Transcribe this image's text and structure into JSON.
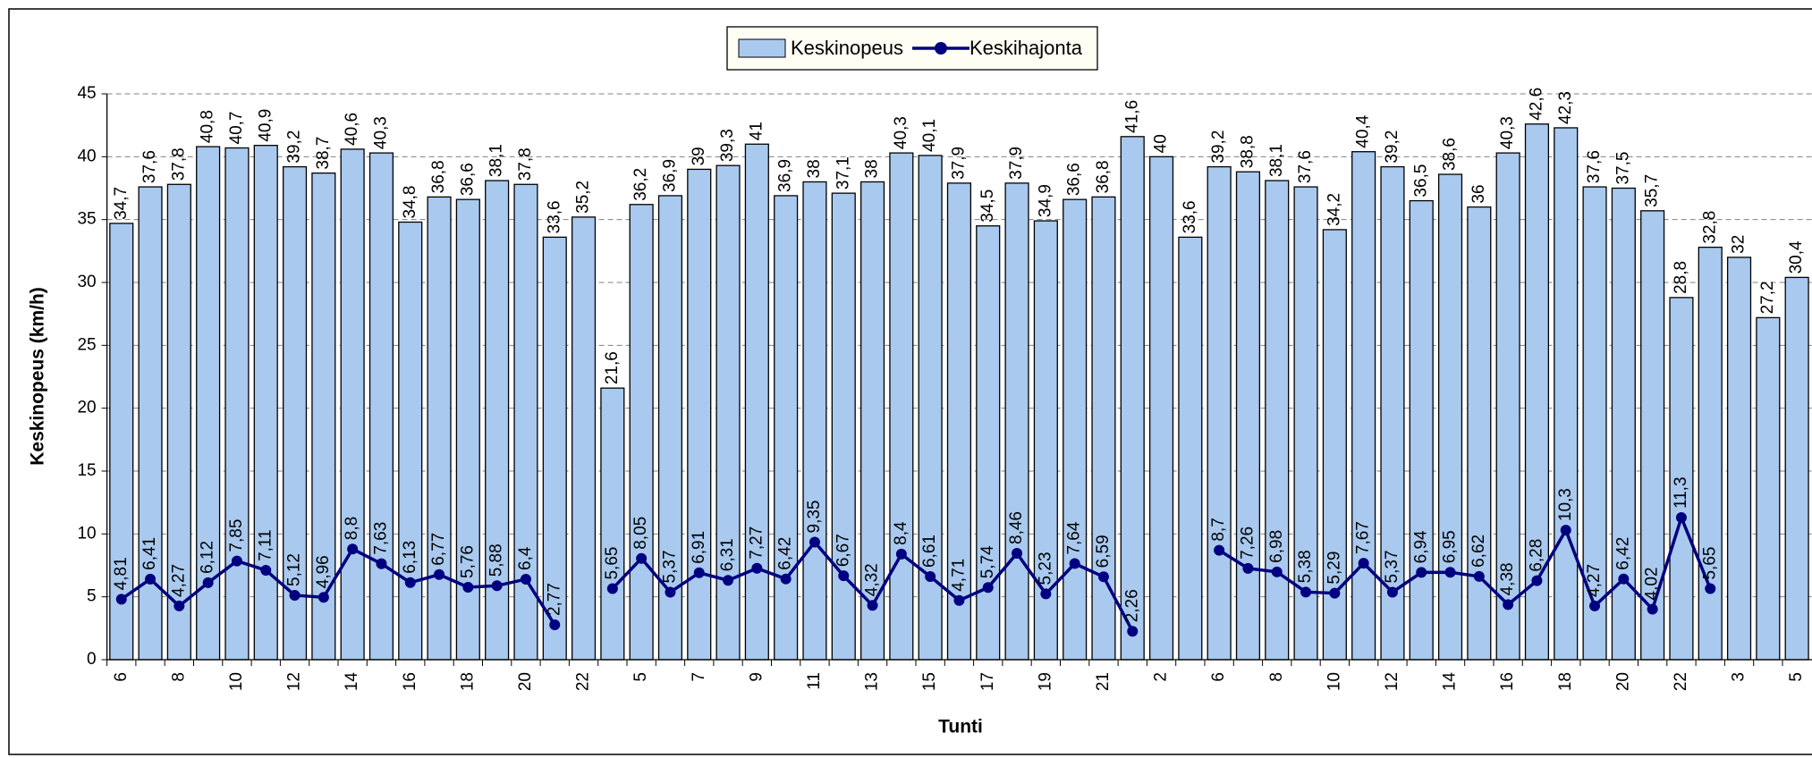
{
  "chart_data": {
    "type": "bar",
    "x_label": "Tunti",
    "y_label": "Keskinopeus (km/h)",
    "categories": [
      "6",
      null,
      "8",
      null,
      "10",
      null,
      "12",
      null,
      "14",
      null,
      "16",
      null,
      "18",
      null,
      "20",
      null,
      "22",
      null,
      "5",
      null,
      "7",
      null,
      "9",
      null,
      "11",
      null,
      "13",
      null,
      "15",
      null,
      "17",
      null,
      "19",
      null,
      "21",
      null,
      "2",
      null,
      "6",
      null,
      "8",
      null,
      "10",
      null,
      "12",
      null,
      "14",
      null,
      "16",
      null,
      "18",
      null,
      "20",
      null,
      "22",
      null,
      "3",
      null,
      "5"
    ],
    "series": [
      {
        "name": "Keskinopeus",
        "type": "bar",
        "color": "#a9c9ef",
        "values": [
          34.7,
          37.6,
          37.8,
          40.8,
          40.7,
          40.9,
          39.2,
          38.7,
          40.6,
          40.3,
          34.8,
          36.8,
          36.6,
          38.1,
          37.8,
          33.6,
          35.2,
          21.6,
          36.2,
          36.9,
          39,
          39.3,
          41,
          36.9,
          38,
          37.1,
          38,
          40.3,
          40.1,
          37.9,
          34.5,
          37.9,
          34.9,
          36.6,
          36.8,
          41.6,
          40,
          33.6,
          39.2,
          38.8,
          38.1,
          37.6,
          34.2,
          40.4,
          39.2,
          36.5,
          38.6,
          36,
          40.3,
          42.6,
          42.3,
          37.6,
          37.5,
          35.7,
          28.8,
          32.8,
          32,
          27.2,
          30.4
        ],
        "value_labels": [
          "34,7",
          "37,6",
          "37,8",
          "40,8",
          "40,7",
          "40,9",
          "39,2",
          "38,7",
          "40,6",
          "40,3",
          "34,8",
          "36,8",
          "36,6",
          "38,1",
          "37,8",
          "33,6",
          "35,2",
          "21,6",
          "36,2",
          "36,9",
          "39",
          "39,3",
          "41",
          "36,9",
          "38",
          "37,1",
          "38",
          "40,3",
          "40,1",
          "37,9",
          "34,5",
          "37,9",
          "34,9",
          "36,6",
          "36,8",
          "41,6",
          "40",
          "33,6",
          "39,2",
          "38,8",
          "38,1",
          "37,6",
          "34,2",
          "40,4",
          "39,2",
          "36,5",
          "38,6",
          "36",
          "40,3",
          "42,6",
          "42,3",
          "37,6",
          "37,5",
          "35,7",
          "28,8",
          "32,8",
          "32",
          "27,2",
          "30,4"
        ]
      },
      {
        "name": "Keskihajonta",
        "type": "line",
        "color": "#000080",
        "values": [
          4.81,
          6.41,
          4.27,
          6.12,
          7.85,
          7.11,
          5.12,
          4.96,
          8.8,
          7.63,
          6.13,
          6.77,
          5.76,
          5.88,
          6.4,
          2.77,
          null,
          5.65,
          8.05,
          5.37,
          6.91,
          6.31,
          7.27,
          6.42,
          9.35,
          6.67,
          4.32,
          8.4,
          6.61,
          4.71,
          5.74,
          8.46,
          5.23,
          7.64,
          6.59,
          2.26,
          null,
          null,
          8.7,
          7.26,
          6.98,
          5.38,
          5.29,
          7.67,
          5.37,
          6.94,
          6.95,
          6.62,
          4.38,
          6.28,
          10.3,
          4.27,
          6.42,
          4.02,
          11.3,
          5.65,
          null,
          null,
          null
        ],
        "value_labels": [
          "4,81",
          "6,41",
          "4,27",
          "6,12",
          "7,85",
          "7,11",
          "5,12",
          "4,96",
          "8,8",
          "7,63",
          "6,13",
          "6,77",
          "5,76",
          "5,88",
          "6,4",
          "2,77",
          null,
          "5,65",
          "8,05",
          "5,37",
          "6,91",
          "6,31",
          "7,27",
          "6,42",
          "9,35",
          "6,67",
          "4,32",
          "8,4",
          "6,61",
          "4,71",
          "5,74",
          "8,46",
          "5,23",
          "7,64",
          "6,59",
          "2,26",
          null,
          null,
          "8,7",
          "7,26",
          "6,98",
          "5,38",
          "5,29",
          "7,67",
          "5,37",
          "6,94",
          "6,95",
          "6,62",
          "4,38",
          "6,28",
          "10,3",
          "4,27",
          "6,42",
          "4,02",
          "11,3",
          "5,65",
          null,
          null,
          null
        ]
      }
    ],
    "ylim": [
      0,
      45
    ],
    "yticks": [
      0,
      5,
      10,
      15,
      20,
      25,
      30,
      35,
      40,
      45
    ],
    "grid": true,
    "legend": "top"
  }
}
